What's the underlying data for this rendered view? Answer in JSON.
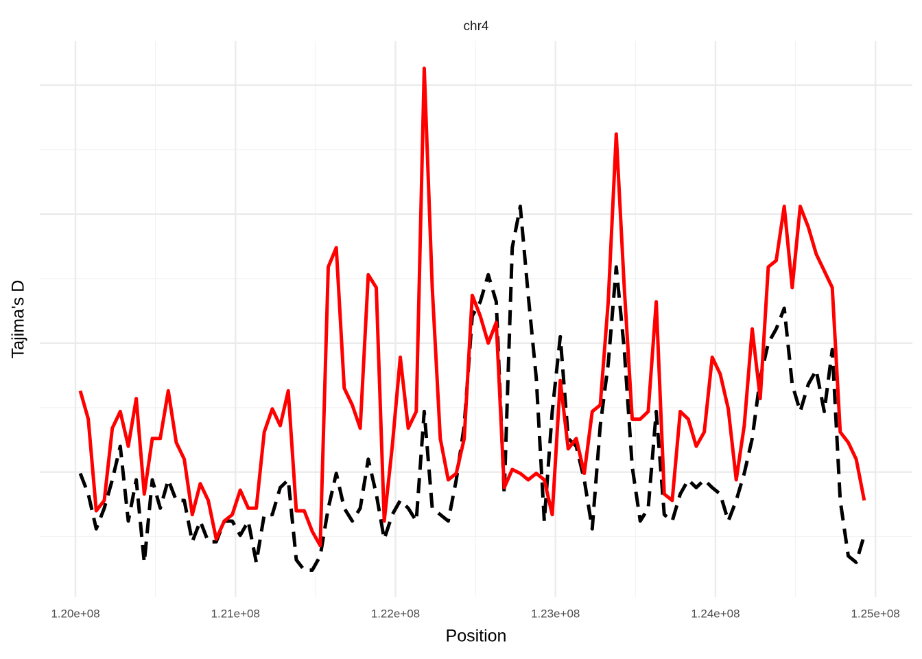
{
  "chart_data": {
    "type": "line",
    "title": "chr4",
    "xlabel": "Position",
    "ylabel": "Tajima's D",
    "xlim": [
      119777000,
      125231000
    ],
    "xticks": [
      {
        "value": 120000000,
        "label": "1.20e+08"
      },
      {
        "value": 121000000,
        "label": "1.21e+08"
      },
      {
        "value": 122000000,
        "label": "1.22e+08"
      },
      {
        "value": 123000000,
        "label": "1.23e+08"
      },
      {
        "value": 124000000,
        "label": "1.24e+08"
      },
      {
        "value": 125000000,
        "label": "1.25e+08"
      }
    ],
    "xticks_minor": [
      120500000,
      121500000,
      122500000,
      123500000,
      124500000
    ],
    "ylim": [
      -1.97,
      2.34
    ],
    "yticks": [
      -1,
      0,
      1,
      2
    ],
    "yticks_minor": [
      -1.5,
      -0.5,
      0.5,
      1.5
    ],
    "ytick_labels": false,
    "grid": true,
    "x": [
      120030000,
      120080000,
      120130000,
      120180000,
      120230000,
      120280000,
      120330000,
      120380000,
      120430000,
      120480000,
      120530000,
      120580000,
      120630000,
      120680000,
      120730000,
      120780000,
      120830000,
      120880000,
      120930000,
      120980000,
      121030000,
      121080000,
      121130000,
      121180000,
      121230000,
      121280000,
      121330000,
      121380000,
      121430000,
      121480000,
      121530000,
      121580000,
      121630000,
      121680000,
      121730000,
      121780000,
      121830000,
      121880000,
      121930000,
      121980000,
      122030000,
      122080000,
      122130000,
      122180000,
      122230000,
      122280000,
      122330000,
      122380000,
      122430000,
      122480000,
      122530000,
      122580000,
      122630000,
      122680000,
      122730000,
      122780000,
      122830000,
      122880000,
      122930000,
      122980000,
      123030000,
      123080000,
      123130000,
      123180000,
      123230000,
      123280000,
      123330000,
      123380000,
      123430000,
      123480000,
      123530000,
      123580000,
      123630000,
      123680000,
      123730000,
      123780000,
      123830000,
      123880000,
      123930000,
      123980000,
      124030000,
      124080000,
      124130000,
      124180000,
      124230000,
      124280000,
      124330000,
      124380000,
      124430000,
      124480000,
      124530000,
      124580000,
      124630000,
      124680000,
      124730000,
      124780000,
      124830000,
      124880000,
      124930000
    ],
    "series": [
      {
        "color": "#000000",
        "dashed": true,
        "values": [
          -1.01,
          -1.17,
          -1.44,
          -1.28,
          -1.06,
          -0.8,
          -1.38,
          -1.06,
          -1.7,
          -1.06,
          -1.28,
          -1.06,
          -1.22,
          -1.22,
          -1.54,
          -1.38,
          -1.54,
          -1.54,
          -1.38,
          -1.38,
          -1.49,
          -1.38,
          -1.7,
          -1.33,
          -1.33,
          -1.12,
          -1.06,
          -1.68,
          -1.76,
          -1.76,
          -1.65,
          -1.28,
          -1.01,
          -1.28,
          -1.38,
          -1.28,
          -0.9,
          -1.17,
          -1.52,
          -1.33,
          -1.22,
          -1.28,
          -1.38,
          -0.53,
          -1.28,
          -1.33,
          -1.38,
          -1.06,
          -0.64,
          0.21,
          0.32,
          0.53,
          0.32,
          -1.17,
          0.74,
          1.06,
          0.37,
          -0.27,
          -1.38,
          -0.53,
          0.05,
          -0.74,
          -0.8,
          -1.06,
          -1.44,
          -0.64,
          -0.16,
          0.59,
          -0.05,
          -0.96,
          -1.38,
          -1.28,
          -0.53,
          -1.33,
          -1.38,
          -1.17,
          -1.06,
          -1.12,
          -1.06,
          -1.12,
          -1.17,
          -1.38,
          -1.22,
          -1.01,
          -0.74,
          -0.27,
          0,
          0.11,
          0.27,
          -0.32,
          -0.53,
          -0.32,
          -0.21,
          -0.53,
          -0.05,
          -1.22,
          -1.65,
          -1.7,
          -1.49
        ]
      },
      {
        "color": "#ff0000",
        "dashed": false,
        "values": [
          -0.37,
          -0.59,
          -1.3,
          -1.22,
          -0.66,
          -0.53,
          -0.8,
          -0.43,
          -1.17,
          -0.74,
          -0.74,
          -0.37,
          -0.77,
          -0.9,
          -1.33,
          -1.09,
          -1.22,
          -1.52,
          -1.38,
          -1.33,
          -1.14,
          -1.28,
          -1.28,
          -0.69,
          -0.51,
          -0.64,
          -0.37,
          -1.3,
          -1.3,
          -1.46,
          -1.57,
          0.59,
          0.74,
          -0.35,
          -0.48,
          -0.66,
          0.53,
          0.43,
          -1.38,
          -0.8,
          -0.11,
          -0.66,
          -0.53,
          2.13,
          0.43,
          -0.74,
          -1.06,
          -1.01,
          -0.74,
          0.37,
          0.21,
          0,
          0.16,
          -1.12,
          -0.98,
          -1.01,
          -1.06,
          -1.01,
          -1.06,
          -1.33,
          -0.29,
          -0.82,
          -0.74,
          -1.01,
          -0.53,
          -0.48,
          0.32,
          1.62,
          0.43,
          -0.59,
          -0.59,
          -0.53,
          0.32,
          -1.17,
          -1.22,
          -0.53,
          -0.59,
          -0.8,
          -0.69,
          -0.11,
          -0.24,
          -0.51,
          -1.06,
          -0.64,
          0.11,
          -0.43,
          0.59,
          0.64,
          1.06,
          0.43,
          1.06,
          0.9,
          0.69,
          0.56,
          0.43,
          -0.69,
          -0.77,
          -0.9,
          -1.22
        ]
      }
    ]
  }
}
